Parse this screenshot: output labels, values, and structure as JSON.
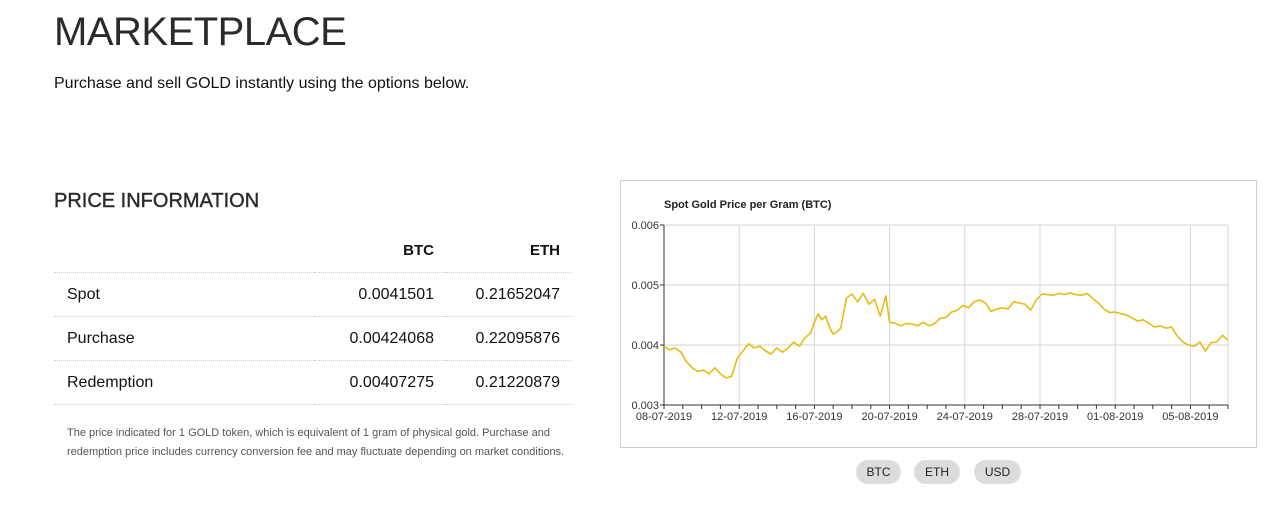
{
  "header": {
    "title": "MARKETPLACE",
    "subtitle": "Purchase and sell GOLD instantly using the options below."
  },
  "price_information": {
    "title": "PRICE INFORMATION",
    "columns": [
      "",
      "BTC",
      "ETH"
    ],
    "rows": [
      {
        "label": "Spot",
        "btc": "0.0041501",
        "eth": "0.21652047"
      },
      {
        "label": "Purchase",
        "btc": "0.00424068",
        "eth": "0.22095876"
      },
      {
        "label": "Redemption",
        "btc": "0.00407275",
        "eth": "0.21220879"
      }
    ],
    "footnote": "The price indicated for 1 GOLD token, which is equivalent of 1 gram of physical gold. Purchase and redemption price includes currency conversion fee and may fluctuate depending on market conditions."
  },
  "currency_toggles": {
    "btc": "BTC",
    "eth": "ETH",
    "usd": "USD"
  },
  "chart_data": {
    "type": "line",
    "title": "Spot Gold Price per Gram (BTC)",
    "xlabel": "",
    "ylabel": "",
    "ylim": [
      0.003,
      0.006
    ],
    "y_ticks": [
      "0.003",
      "0.004",
      "0.005",
      "0.006"
    ],
    "x_ticks": [
      "08-07-2019",
      "12-07-2019",
      "16-07-2019",
      "20-07-2019",
      "24-07-2019",
      "28-07-2019",
      "01-08-2019",
      "05-08-2019"
    ],
    "x_range_days": [
      0,
      30
    ],
    "grid": true,
    "line_color": "#e3bd13",
    "series": [
      {
        "x": [
          0,
          0.3,
          0.6,
          0.9,
          1.2,
          1.5,
          1.8,
          2.1,
          2.4,
          2.7,
          3.0,
          3.3,
          3.6,
          3.9,
          4.2,
          4.5,
          4.8,
          5.1,
          5.4,
          5.7,
          6.0,
          6.3,
          6.6,
          6.9,
          7.2,
          7.5,
          7.8,
          8.0,
          8.2,
          8.4,
          8.6,
          8.8,
          9.0,
          9.2,
          9.4,
          9.7,
          10.0,
          10.3,
          10.6,
          10.9,
          11.2,
          11.5,
          11.8,
          12.0,
          12.3,
          12.6,
          12.9,
          13.2,
          13.5,
          13.8,
          14.1,
          14.4,
          14.7,
          15.0,
          15.3,
          15.6,
          15.9,
          16.2,
          16.5,
          16.8,
          17.1,
          17.4,
          17.7,
          18.0,
          18.3,
          18.6,
          18.9,
          19.2,
          19.5,
          19.8,
          20.1,
          20.4,
          20.7,
          21.0,
          21.3,
          21.6,
          21.9,
          22.2,
          22.5,
          22.8,
          23.1,
          23.4,
          23.7,
          24.0,
          24.3,
          24.6,
          24.9,
          25.2,
          25.5,
          25.8,
          26.1,
          26.4,
          26.7,
          27.0,
          27.3,
          27.6,
          27.9,
          28.2,
          28.5,
          28.8,
          29.1,
          29.4,
          29.7,
          30.0
        ],
        "y": [
          0.00398,
          0.00392,
          0.00395,
          0.00388,
          0.00372,
          0.00362,
          0.00356,
          0.00358,
          0.00352,
          0.00362,
          0.00352,
          0.00345,
          0.00348,
          0.00378,
          0.0039,
          0.00402,
          0.00395,
          0.00398,
          0.0039,
          0.00385,
          0.00395,
          0.00388,
          0.00395,
          0.00405,
          0.00398,
          0.00412,
          0.0042,
          0.00438,
          0.00452,
          0.00442,
          0.00448,
          0.0043,
          0.00418,
          0.00422,
          0.00428,
          0.00478,
          0.00485,
          0.00472,
          0.00486,
          0.00468,
          0.00476,
          0.00448,
          0.00482,
          0.00438,
          0.00436,
          0.00432,
          0.00436,
          0.00435,
          0.00432,
          0.00438,
          0.00432,
          0.00436,
          0.00445,
          0.00446,
          0.00455,
          0.00458,
          0.00466,
          0.00462,
          0.00472,
          0.00475,
          0.0047,
          0.00456,
          0.0046,
          0.00462,
          0.0046,
          0.00472,
          0.0047,
          0.00468,
          0.00458,
          0.00475,
          0.00485,
          0.00484,
          0.00483,
          0.00486,
          0.00484,
          0.00487,
          0.00484,
          0.00483,
          0.00486,
          0.00478,
          0.0047,
          0.0046,
          0.00454,
          0.00455,
          0.00452,
          0.0045,
          0.00445,
          0.0044,
          0.00442,
          0.00436,
          0.0043,
          0.00432,
          0.00428,
          0.0043,
          0.00415,
          0.00405,
          0.004,
          0.00398,
          0.00405,
          0.0039,
          0.00404,
          0.00405,
          0.00416,
          0.00408
        ]
      }
    ]
  }
}
